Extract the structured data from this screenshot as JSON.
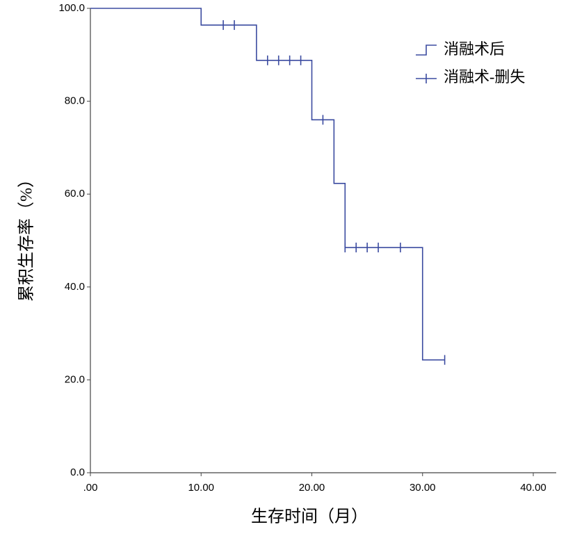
{
  "chart_data": {
    "type": "kaplan-meier",
    "xlabel": "生存时间（月）",
    "ylabel": "累积生存率（%）",
    "xlim": [
      0,
      40
    ],
    "xticks": [
      {
        "value": 0,
        "label": ".00"
      },
      {
        "value": 10,
        "label": "10.00"
      },
      {
        "value": 20,
        "label": "20.00"
      },
      {
        "value": 30,
        "label": "30.00"
      },
      {
        "value": 40,
        "label": "40.00"
      }
    ],
    "ylim": [
      0,
      100
    ],
    "yticks": [
      {
        "value": 0,
        "label": "0.0"
      },
      {
        "value": 20,
        "label": "20.0"
      },
      {
        "value": 40,
        "label": "40.0"
      },
      {
        "value": 60,
        "label": "60.0"
      },
      {
        "value": 80,
        "label": "80.0"
      },
      {
        "value": 100,
        "label": "100.0"
      }
    ],
    "legend": "top-right",
    "series": [
      {
        "name": "消融术后",
        "color": "#3b4ba0",
        "style": "step",
        "x": [
          0,
          10,
          15,
          20,
          22,
          23,
          30,
          32
        ],
        "values": [
          100,
          96.4,
          88.8,
          76.0,
          62.3,
          48.5,
          24.3,
          24.3
        ]
      },
      {
        "name": "消融术-删失",
        "color": "#3b4ba0",
        "style": "censor",
        "x": [
          12,
          13,
          16,
          17,
          18,
          19,
          21,
          23,
          24,
          25,
          26,
          28,
          32
        ],
        "values": [
          96.4,
          96.4,
          88.8,
          88.8,
          88.8,
          88.8,
          76.0,
          48.5,
          48.5,
          48.5,
          48.5,
          48.5,
          24.3
        ]
      }
    ]
  }
}
